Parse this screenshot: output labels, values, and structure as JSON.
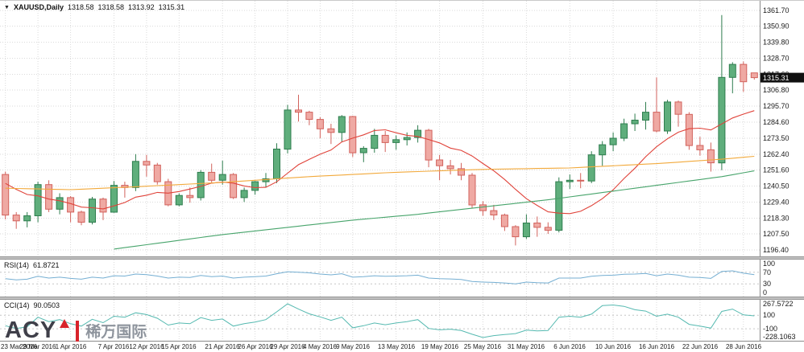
{
  "title": {
    "symbol": "XAUUSD,Daily",
    "open": "1318.58",
    "high": "1318.58",
    "low": "1313.92",
    "close": "1315.31"
  },
  "watermark": {
    "brand": "ACY",
    "cn": "稀万国际"
  },
  "indicators": {
    "rsi": {
      "label": "RSI(14)",
      "value": "61.8721",
      "color": "#74aed2",
      "scale": [
        "100",
        "70",
        "30",
        "0"
      ],
      "levels": [
        70,
        30
      ],
      "range": [
        0,
        100
      ]
    },
    "cci": {
      "label": "CCI(14)",
      "value": "90.0503",
      "color": "#55b9b0",
      "scale": [
        "267.5722",
        "100",
        "-100",
        "-228.1063"
      ],
      "levels": [
        100,
        -100
      ],
      "range": [
        -228.1063,
        267.5722
      ]
    }
  },
  "chart_data": {
    "type": "candlestick",
    "symbol": "XAUUSD",
    "timeframe": "Daily",
    "y_axis": {
      "min": 1196.4,
      "max": 1361.7,
      "labels": [
        "1361.70",
        "1350.90",
        "1339.80",
        "1328.70",
        "1317.60",
        "1306.80",
        "1295.70",
        "1284.60",
        "1273.50",
        "1262.40",
        "1251.60",
        "1240.50",
        "1229.40",
        "1218.30",
        "1207.50",
        "1196.40"
      ]
    },
    "current_price": "1315.31",
    "x_labels": [
      {
        "i": 0,
        "t": "23 Mar 2016"
      },
      {
        "i": 3,
        "t": "29 Mar 2016"
      },
      {
        "i": 6,
        "t": "1 Apr 2016"
      },
      {
        "i": 10,
        "t": "7 Apr 2016"
      },
      {
        "i": 13,
        "t": "12 Apr 2016"
      },
      {
        "i": 16,
        "t": "15 Apr 2016"
      },
      {
        "i": 20,
        "t": "21 Apr 2016"
      },
      {
        "i": 23,
        "t": "26 Apr 2016"
      },
      {
        "i": 26,
        "t": "29 Apr 2016"
      },
      {
        "i": 29,
        "t": "4 May 2016"
      },
      {
        "i": 32,
        "t": "9 May 2016"
      },
      {
        "i": 36,
        "t": "13 May 2016"
      },
      {
        "i": 40,
        "t": "19 May 2016"
      },
      {
        "i": 44,
        "t": "25 May 2016"
      },
      {
        "i": 48,
        "t": "31 May 2016"
      },
      {
        "i": 52,
        "t": "6 Jun 2016"
      },
      {
        "i": 56,
        "t": "10 Jun 2016"
      },
      {
        "i": 60,
        "t": "16 Jun 2016"
      },
      {
        "i": 64,
        "t": "22 Jun 2016"
      },
      {
        "i": 68,
        "t": "28 Jun 2016"
      }
    ],
    "ohlc": [
      [
        1248.5,
        1250.5,
        1217.5,
        1220.5
      ],
      [
        1220.5,
        1222.5,
        1211.0,
        1216.5
      ],
      [
        1216.5,
        1222.5,
        1212.0,
        1220.0
      ],
      [
        1220.0,
        1243.5,
        1215.5,
        1241.5
      ],
      [
        1241.5,
        1244.5,
        1222.5,
        1224.5
      ],
      [
        1224.5,
        1235.5,
        1221.0,
        1232.5
      ],
      [
        1232.5,
        1233.5,
        1215.5,
        1222.5
      ],
      [
        1222.5,
        1223.5,
        1213.5,
        1215.5
      ],
      [
        1215.5,
        1233.0,
        1214.0,
        1231.5
      ],
      [
        1231.5,
        1232.5,
        1217.0,
        1222.5
      ],
      [
        1222.5,
        1244.0,
        1222.0,
        1241.0
      ],
      [
        1241.0,
        1243.5,
        1232.5,
        1239.5
      ],
      [
        1239.5,
        1262.5,
        1237.0,
        1257.5
      ],
      [
        1257.5,
        1262.0,
        1247.0,
        1255.0
      ],
      [
        1255.0,
        1256.5,
        1241.5,
        1243.5
      ],
      [
        1243.5,
        1245.5,
        1226.5,
        1227.5
      ],
      [
        1227.5,
        1235.5,
        1226.5,
        1234.0
      ],
      [
        1234.0,
        1239.5,
        1229.0,
        1232.5
      ],
      [
        1232.5,
        1251.5,
        1230.5,
        1250.0
      ],
      [
        1250.0,
        1256.0,
        1242.5,
        1244.5
      ],
      [
        1244.5,
        1258.0,
        1241.5,
        1248.5
      ],
      [
        1248.5,
        1249.5,
        1231.5,
        1232.5
      ],
      [
        1232.5,
        1239.5,
        1229.5,
        1237.5
      ],
      [
        1237.5,
        1244.0,
        1234.5,
        1243.5
      ],
      [
        1243.5,
        1249.5,
        1239.5,
        1245.5
      ],
      [
        1245.5,
        1270.0,
        1242.5,
        1266.0
      ],
      [
        1266.0,
        1296.5,
        1263.0,
        1293.0
      ],
      [
        1293.0,
        1303.5,
        1285.0,
        1291.5
      ],
      [
        1291.5,
        1292.5,
        1282.5,
        1286.5
      ],
      [
        1286.5,
        1288.0,
        1273.5,
        1280.0
      ],
      [
        1280.0,
        1283.5,
        1269.5,
        1277.5
      ],
      [
        1277.5,
        1289.5,
        1271.0,
        1288.5
      ],
      [
        1288.5,
        1289.0,
        1260.5,
        1263.5
      ],
      [
        1263.5,
        1268.0,
        1257.0,
        1266.5
      ],
      [
        1266.5,
        1280.0,
        1263.5,
        1275.5
      ],
      [
        1275.5,
        1278.5,
        1264.0,
        1270.5
      ],
      [
        1270.5,
        1275.5,
        1265.5,
        1272.5
      ],
      [
        1272.5,
        1277.5,
        1268.5,
        1274.0
      ],
      [
        1274.0,
        1282.5,
        1270.5,
        1279.0
      ],
      [
        1279.0,
        1280.0,
        1253.5,
        1258.5
      ],
      [
        1258.5,
        1262.0,
        1244.5,
        1254.5
      ],
      [
        1254.5,
        1258.5,
        1248.5,
        1252.5
      ],
      [
        1252.5,
        1256.5,
        1244.5,
        1248.0
      ],
      [
        1248.0,
        1249.5,
        1225.5,
        1227.5
      ],
      [
        1227.5,
        1230.0,
        1220.0,
        1223.5
      ],
      [
        1223.5,
        1227.5,
        1217.0,
        1220.5
      ],
      [
        1220.5,
        1221.5,
        1209.5,
        1212.5
      ],
      [
        1212.5,
        1213.5,
        1199.5,
        1205.5
      ],
      [
        1205.5,
        1221.0,
        1204.0,
        1215.0
      ],
      [
        1215.0,
        1219.5,
        1205.5,
        1212.0
      ],
      [
        1212.0,
        1215.5,
        1207.5,
        1210.0
      ],
      [
        1210.0,
        1246.5,
        1208.5,
        1243.5
      ],
      [
        1243.5,
        1248.5,
        1238.5,
        1244.5
      ],
      [
        1244.5,
        1249.5,
        1239.0,
        1244.0
      ],
      [
        1244.0,
        1264.5,
        1242.5,
        1262.0
      ],
      [
        1262.0,
        1271.5,
        1254.5,
        1269.0
      ],
      [
        1269.0,
        1277.5,
        1264.5,
        1273.5
      ],
      [
        1273.5,
        1287.0,
        1271.5,
        1283.5
      ],
      [
        1283.5,
        1290.5,
        1278.5,
        1286.0
      ],
      [
        1286.0,
        1298.5,
        1279.5,
        1291.5
      ],
      [
        1291.5,
        1315.5,
        1277.5,
        1278.5
      ],
      [
        1278.5,
        1300.0,
        1276.5,
        1298.5
      ],
      [
        1298.5,
        1299.5,
        1281.5,
        1290.0
      ],
      [
        1290.0,
        1291.5,
        1265.5,
        1268.5
      ],
      [
        1268.5,
        1274.5,
        1261.5,
        1265.5
      ],
      [
        1265.5,
        1270.5,
        1250.5,
        1256.5
      ],
      [
        1256.5,
        1358.5,
        1251.5,
        1315.5
      ],
      [
        1315.5,
        1326.0,
        1304.5,
        1324.5
      ],
      [
        1324.5,
        1326.5,
        1305.5,
        1312.5
      ],
      [
        1318.58,
        1318.58,
        1313.92,
        1315.31
      ]
    ],
    "colors": {
      "up_fill": "#5fae7c",
      "up_border": "#2e7d4e",
      "down_fill": "#efa9a3",
      "down_border": "#d2625c",
      "price_tag_bg": "#101010",
      "price_tag_text": "#ffffff"
    },
    "overlays": [
      {
        "name": "ma-fast-red",
        "type": "sma",
        "period": 10,
        "color": "#e0433a",
        "seed_closes": [
          1262,
          1258,
          1255,
          1251,
          1247,
          1244,
          1242,
          1240,
          1236,
          1230
        ]
      },
      {
        "name": "ma-mid-orange",
        "type": "anchors",
        "color": "#f2a93b",
        "anchors": [
          [
            0,
            1239
          ],
          [
            6,
            1238
          ],
          [
            12,
            1240
          ],
          [
            20,
            1243
          ],
          [
            28,
            1247
          ],
          [
            36,
            1250
          ],
          [
            44,
            1252
          ],
          [
            52,
            1253
          ],
          [
            60,
            1256
          ],
          [
            66,
            1259
          ],
          [
            69,
            1261
          ]
        ]
      },
      {
        "name": "ma-slow-green",
        "type": "anchors",
        "color": "#47a46b",
        "anchors": [
          [
            10,
            1197
          ],
          [
            14,
            1201
          ],
          [
            20,
            1207
          ],
          [
            26,
            1212
          ],
          [
            32,
            1217
          ],
          [
            38,
            1221
          ],
          [
            44,
            1226
          ],
          [
            50,
            1231
          ],
          [
            56,
            1237
          ],
          [
            62,
            1243
          ],
          [
            66,
            1247
          ],
          [
            69,
            1251
          ]
        ]
      }
    ],
    "rsi_values": [
      48,
      44,
      46,
      56,
      50,
      53,
      49,
      46,
      53,
      50,
      58,
      57,
      64,
      62,
      57,
      50,
      53,
      52,
      59,
      55,
      57,
      50,
      53,
      55,
      57,
      65,
      72,
      70,
      68,
      64,
      61,
      65,
      53,
      55,
      58,
      56,
      57,
      58,
      60,
      50,
      48,
      47,
      45,
      38,
      36,
      35,
      33,
      30,
      36,
      34,
      33,
      50,
      50,
      50,
      56,
      59,
      60,
      63,
      64,
      66,
      58,
      64,
      60,
      53,
      52,
      49,
      73,
      75,
      67,
      61.87
    ],
    "cci_values": [
      -55,
      -95,
      -70,
      70,
      5,
      35,
      -25,
      -60,
      40,
      -10,
      85,
      70,
      135,
      110,
      55,
      -45,
      -15,
      -25,
      65,
      25,
      45,
      -60,
      -25,
      0,
      35,
      150,
      267.57,
      190,
      120,
      75,
      25,
      70,
      -85,
      -55,
      -15,
      -40,
      -15,
      5,
      35,
      -95,
      -115,
      -105,
      -125,
      -180,
      -228.11,
      -200,
      -185,
      -170,
      -120,
      -130,
      -125,
      70,
      85,
      70,
      115,
      240,
      250,
      230,
      180,
      160,
      85,
      115,
      70,
      -35,
      -60,
      -90,
      155,
      190,
      105,
      90.05
    ]
  }
}
